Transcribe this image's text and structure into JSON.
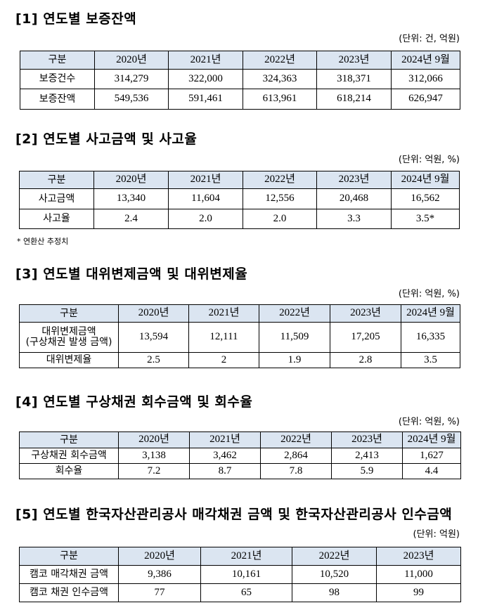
{
  "sections": [
    {
      "title": "[1] 연도별 보증잔액",
      "unit": "(단위: 건, 억원)",
      "headers": [
        "구분",
        "2020년",
        "2021년",
        "2022년",
        "2023년",
        "2024년 9월"
      ],
      "rows": [
        [
          "보증건수",
          "314,279",
          "322,000",
          "324,363",
          "318,371",
          "312,066"
        ],
        [
          "보증잔액",
          "549,536",
          "591,461",
          "613,961",
          "618,214",
          "626,947"
        ]
      ]
    },
    {
      "title": "[2] 연도별 사고금액 및 사고율",
      "unit": "(단위: 억원, %)",
      "headers": [
        "구분",
        "2020년",
        "2021년",
        "2022년",
        "2023년",
        "2024년 9월"
      ],
      "rows": [
        [
          "사고금액",
          "13,340",
          "11,604",
          "12,556",
          "20,468",
          "16,562"
        ],
        [
          "사고율",
          "2.4",
          "2.0",
          "2.0",
          "3.3",
          "3.5*"
        ]
      ],
      "note": "* 연환산 추정치"
    },
    {
      "title": "[3] 연도별 대위변제금액 및 대위변제율",
      "unit": "(단위: 억원, %)",
      "headers": [
        "구분",
        "2020년",
        "2021년",
        "2022년",
        "2023년",
        "2024년 9월"
      ],
      "rows": [
        [
          "대위변제금액\n(구상채권 발생 금액)",
          "13,594",
          "12,111",
          "11,509",
          "17,205",
          "16,335"
        ],
        [
          "대위변제율",
          "2.5",
          "2",
          "1.9",
          "2.8",
          "3.5"
        ]
      ]
    },
    {
      "title": "[4] 연도별 구상채권 회수금액 및 회수율",
      "unit": "(단위: 억원, %)",
      "headers": [
        "구분",
        "2020년",
        "2021년",
        "2022년",
        "2023년",
        "2024년 9월"
      ],
      "rows": [
        [
          "구상채권 회수금액",
          "3,138",
          "3,462",
          "2,864",
          "2,413",
          "1,627"
        ],
        [
          "회수율",
          "7.2",
          "8.7",
          "7.8",
          "5.9",
          "4.4"
        ]
      ]
    },
    {
      "title": "[5] 연도별 한국자산관리공사 매각채권 금액 및 한국자산관리공사 인수금액",
      "unit": "(단위: 억원)",
      "headers": [
        "구분",
        "2020년",
        "2021년",
        "2022년",
        "2023년"
      ],
      "rows": [
        [
          "캠코 매각채권 금액",
          "9,386",
          "10,161",
          "10,520",
          "11,000"
        ],
        [
          "캠코 채권 인수금액",
          "77",
          "65",
          "98",
          "99"
        ]
      ]
    }
  ],
  "colors": {
    "header_bg": "#dbe5f1",
    "border": "#000000"
  }
}
